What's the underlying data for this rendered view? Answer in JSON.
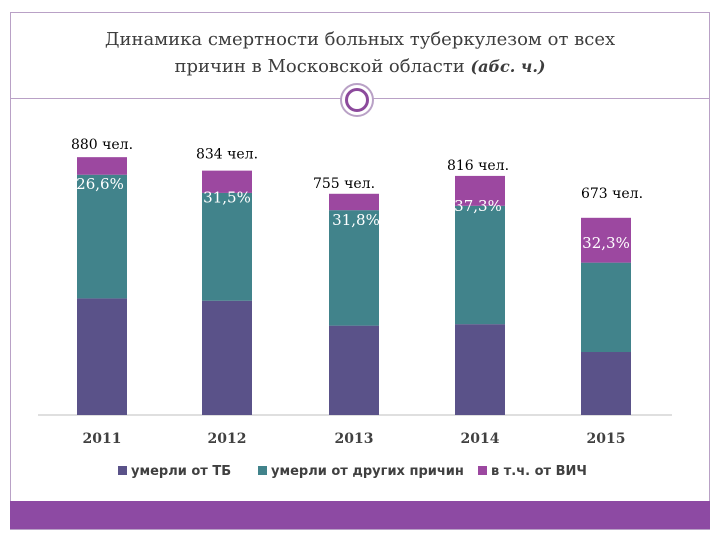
{
  "title": {
    "line1": "Динамика смертности больных туберкулезом от всех",
    "line2": "причин в Московской области",
    "unit": "(абс. ч.)"
  },
  "colors": {
    "tb": "#5a5289",
    "other": "#41838b",
    "hiv": "#9c48a0",
    "accent": "#8d4aa3"
  },
  "chart_data": {
    "type": "bar",
    "stacked": true,
    "categories": [
      "2011",
      "2012",
      "2013",
      "2014",
      "2015"
    ],
    "series": [
      {
        "name": "умерли от ТБ",
        "values": [
          398,
          390,
          305,
          310,
          215
        ]
      },
      {
        "name": "умерли от других причин",
        "values": [
          422,
          368,
          394,
          404,
          305
        ]
      },
      {
        "name": "в т.ч. от ВИЧ",
        "values": [
          60,
          76,
          56,
          102,
          153
        ]
      }
    ],
    "totals": [
      "880 чел.",
      "834 чел.",
      "755 чел.",
      "816 чел.",
      "673 чел."
    ],
    "hiv_percent": [
      "26,6%",
      "31,5%",
      "31,8%",
      "37,3%",
      "32,3%"
    ],
    "ylim": [
      0,
      1000
    ],
    "grid": false,
    "legend": "bottom"
  }
}
